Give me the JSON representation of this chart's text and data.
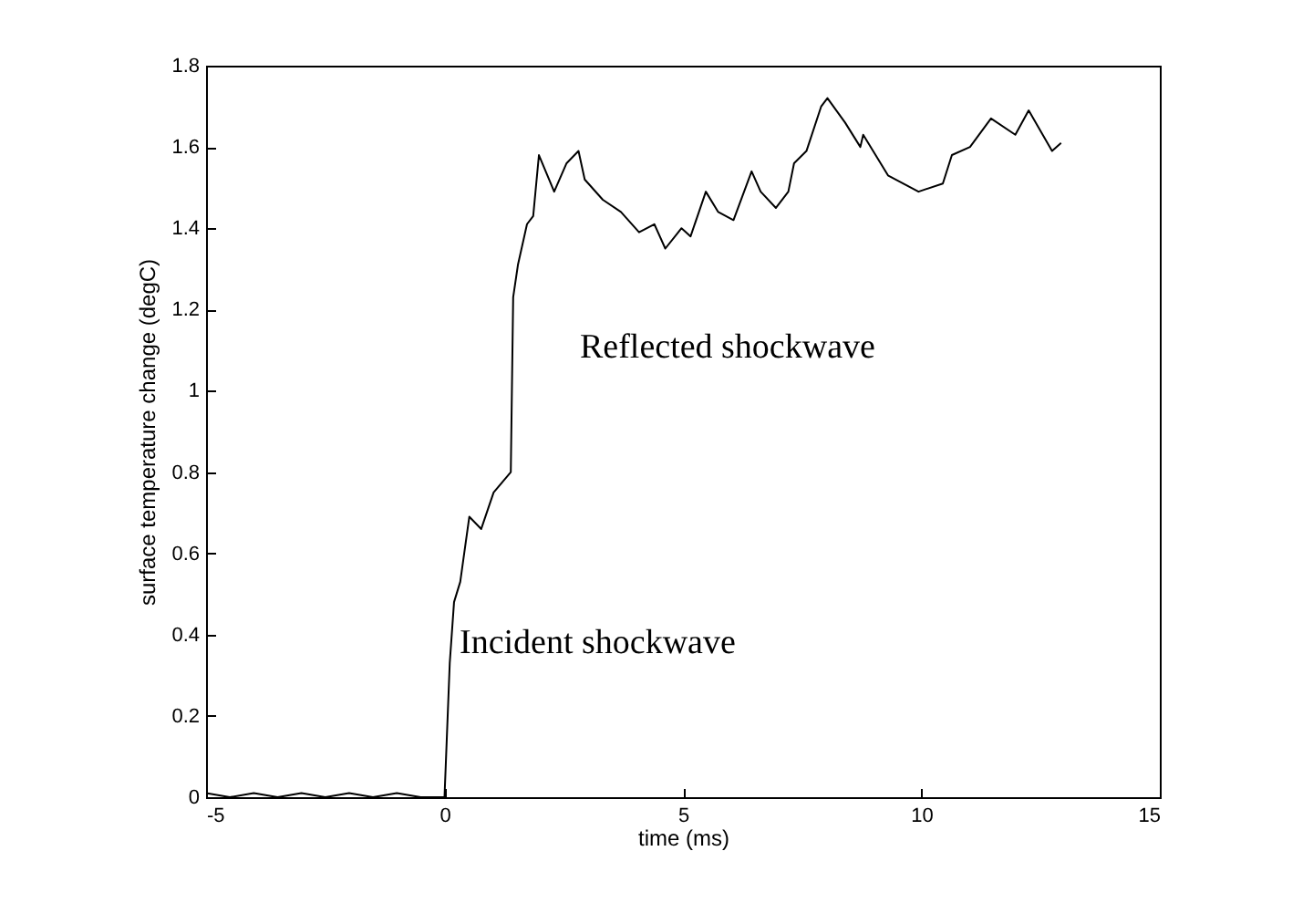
{
  "chart_data": {
    "type": "line",
    "xlabel": "time (ms)",
    "ylabel": "surface temperature change (degC)",
    "annotations": [
      "Reflected shockwave",
      "Incident shockwave"
    ],
    "xlim": [
      -5,
      15
    ],
    "xticks": [
      -5,
      0,
      5,
      10,
      15
    ],
    "ylim": [
      0,
      1.8
    ],
    "yticks": [
      0,
      0.2,
      0.4,
      0.6,
      0.8,
      1,
      1.2,
      1.4,
      1.6,
      1.8
    ],
    "grid": false,
    "marker": "none",
    "line_style": "solid",
    "series": [
      {
        "color": "#000000",
        "x": [
          -5,
          -4.5,
          -4,
          -3.5,
          -3,
          -2.5,
          -2,
          -1.5,
          -1,
          -0.5,
          0,
          0.11,
          0.2,
          0.33,
          0.52,
          0.77,
          1.03,
          1.39,
          1.44,
          1.54,
          1.73,
          1.86,
          1.98,
          2.3,
          2.56,
          2.81,
          2.94,
          3.32,
          3.7,
          4.08,
          4.4,
          4.63,
          4.97,
          5.16,
          5.48,
          5.74,
          6.06,
          6.44,
          6.63,
          6.95,
          7.21,
          7.33,
          7.59,
          7.9,
          8.03,
          8.4,
          8.72,
          8.78,
          9.3,
          9.94,
          10.45,
          10.64,
          11.02,
          11.46,
          11.97,
          12.25,
          12.74,
          12.93
        ],
        "values": [
          0.01,
          0,
          0.01,
          0,
          0.01,
          0,
          0.01,
          0,
          0.01,
          0,
          0,
          0.33,
          0.48,
          0.53,
          0.69,
          0.66,
          0.75,
          0.8,
          1.23,
          1.31,
          1.41,
          1.43,
          1.58,
          1.49,
          1.56,
          1.59,
          1.52,
          1.47,
          1.44,
          1.39,
          1.41,
          1.35,
          1.4,
          1.38,
          1.49,
          1.44,
          1.42,
          1.54,
          1.49,
          1.45,
          1.49,
          1.56,
          1.59,
          1.7,
          1.72,
          1.66,
          1.6,
          1.63,
          1.53,
          1.49,
          1.51,
          1.58,
          1.6,
          1.67,
          1.63,
          1.69,
          1.59,
          1.61
        ]
      }
    ]
  }
}
